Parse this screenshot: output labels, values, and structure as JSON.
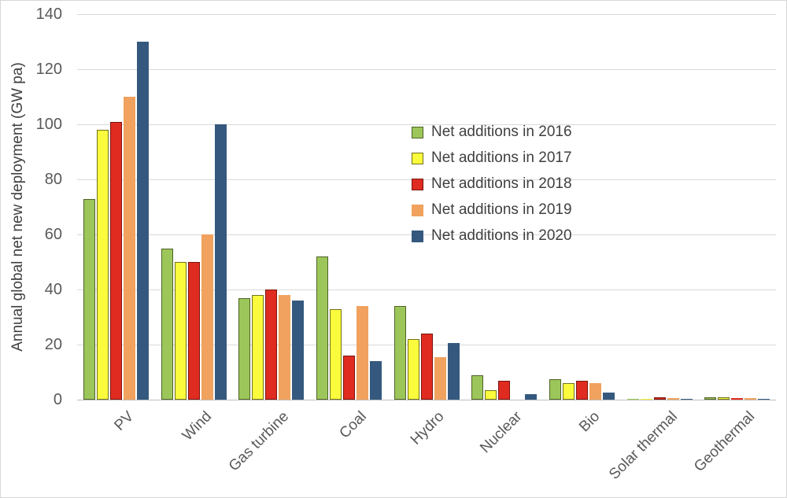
{
  "figure": {
    "background": "#ffffff",
    "border_color": "#d7d7d7",
    "grid_color": "#d9d9d9",
    "axis_line_color": "#bfbfbf",
    "tick_text_color": "#595959",
    "legend_text_color": "#404040"
  },
  "chart_data": {
    "type": "bar",
    "title": "",
    "xlabel": "",
    "ylabel": "Annual global net new deployment (GW pa)",
    "ylim": [
      0,
      140
    ],
    "yticks": [
      0,
      20,
      40,
      60,
      80,
      100,
      120,
      140
    ],
    "grid": true,
    "legend_position": "inside-upper-right",
    "categories": [
      "PV",
      "Wind",
      "Gas turbine",
      "Coal",
      "Hydro",
      "Nuclear",
      "Bio",
      "Solar thermal",
      "Geothermal"
    ],
    "series": [
      {
        "name": "Net additions in 2016",
        "year": "2016",
        "color": "#9cc65a",
        "border": "#4f6228",
        "values": [
          73,
          55,
          37,
          52,
          34,
          9,
          7.5,
          0.3,
          0.8
        ]
      },
      {
        "name": "Net additions in 2017",
        "year": "2017",
        "color": "#fbfb3d",
        "border": "#71711c",
        "values": [
          98,
          50,
          38,
          33,
          22,
          3.5,
          6,
          0.3,
          0.8
        ]
      },
      {
        "name": "Net additions in 2018",
        "year": "2018",
        "color": "#e02b20",
        "border": "#7a150e",
        "values": [
          101,
          50,
          40,
          16,
          24,
          7,
          7,
          0.8,
          0.7
        ]
      },
      {
        "name": "Net additions in 2019",
        "year": "2019",
        "color": "#f0a25e",
        "border": null,
        "values": [
          110,
          60,
          38,
          34,
          15.5,
          0,
          6,
          0.6,
          0.7
        ]
      },
      {
        "name": "Net additions in 2020",
        "year": "2020",
        "color": "#35597e",
        "border": null,
        "values": [
          130,
          100,
          36,
          14,
          20.5,
          2,
          2.5,
          0.1,
          0.1
        ]
      }
    ]
  }
}
